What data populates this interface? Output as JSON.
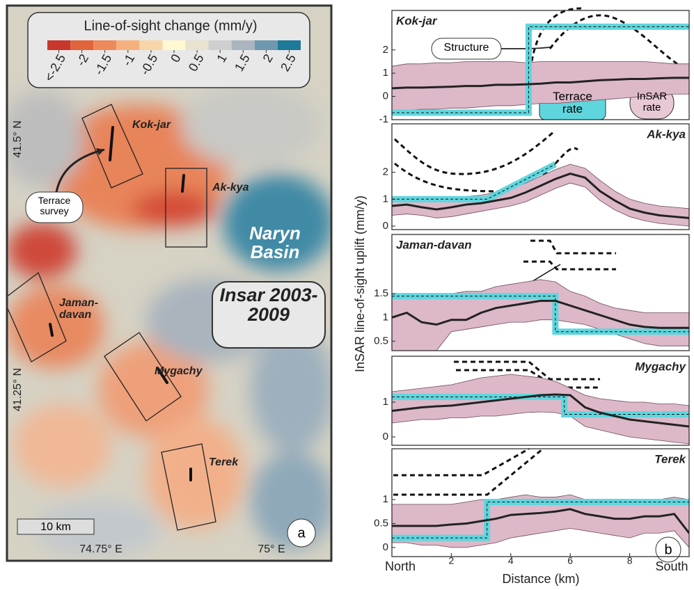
{
  "map": {
    "legend": {
      "title": "Line-of-sight change (mm/y)",
      "ticks": [
        {
          "value": -2.5,
          "label": "<-2.5"
        },
        -2,
        -1.5,
        -1,
        -0.5,
        0,
        0.5,
        1,
        1.5,
        2,
        2.5
      ],
      "colors": [
        "#c8372d",
        "#e0643c",
        "#ee8a5a",
        "#f6b07d",
        "#f8d5a8",
        "#fff8d0",
        "#e8e2cf",
        "#cfcfcf",
        "#aab5bf",
        "#6e98b0",
        "#1f7a99"
      ]
    },
    "sites": [
      "Kok-jar",
      "Ak-kya",
      "Jaman-davan",
      "Mygachy",
      "Terek"
    ],
    "basin": "Naryn Basin",
    "dataset": "Insar 2003-2009",
    "callout": "Terrace survey",
    "scale": "10 km",
    "longitudes": [
      "74.75° E",
      "75° E"
    ],
    "latitudes": [
      "41.5° N",
      "41.25° N"
    ],
    "panel_label": "a"
  },
  "profiles": {
    "xlabel": "Distance (km)",
    "ylabel": "InSAR line-of-sight uplift (mm/y)",
    "panel_label": "b"
  },
  "chart_data": [
    {
      "type": "line",
      "title": "Kok-jar",
      "xlim": [
        0,
        10
      ],
      "ylim": [
        -1,
        3.7
      ],
      "yticks": [
        -1,
        0,
        1,
        2
      ],
      "annotations": [
        "Structure",
        "Terrace rate",
        "InSAR rate"
      ],
      "x": [
        0,
        0.5,
        1,
        1.5,
        2,
        2.5,
        3,
        3.5,
        4,
        4.5,
        5,
        5.5,
        6,
        6.5,
        7,
        7.5,
        8,
        8.5,
        9,
        9.5,
        10
      ],
      "insar": {
        "color": "#222222",
        "band_color": "#dcb8c8",
        "values": [
          0.35,
          0.38,
          0.38,
          0.4,
          0.42,
          0.45,
          0.45,
          0.5,
          0.5,
          0.52,
          0.55,
          0.6,
          0.6,
          0.65,
          0.7,
          0.72,
          0.75,
          0.75,
          0.78,
          0.8,
          0.8
        ],
        "upper": [
          1.3,
          1.4,
          1.4,
          1.45,
          1.45,
          1.5,
          1.5,
          1.5,
          1.5,
          1.45,
          1.5,
          1.5,
          1.5,
          1.5,
          1.5,
          1.5,
          1.5,
          1.5,
          1.45,
          1.4,
          1.4
        ],
        "lower": [
          -0.6,
          -0.6,
          -0.55,
          -0.55,
          -0.5,
          -0.5,
          -0.45,
          -0.4,
          -0.4,
          -0.35,
          -0.3,
          -0.3,
          -0.25,
          -0.2,
          -0.15,
          -0.1,
          -0.05,
          0,
          0.05,
          0.1,
          0.1
        ]
      },
      "terrace": {
        "color": "#5fd6de",
        "x": [
          0,
          4.6,
          4.6,
          10
        ],
        "values": [
          -0.7,
          -0.7,
          3.0,
          3.0
        ]
      }
    },
    {
      "type": "line",
      "title": "Ak-kya",
      "xlim": [
        0,
        10
      ],
      "ylim": [
        -0.13,
        3.8
      ],
      "yticks": [
        0,
        1,
        2
      ],
      "x": [
        0,
        0.5,
        1,
        1.5,
        2,
        2.5,
        3,
        3.5,
        4,
        4.5,
        5,
        5.5,
        6,
        6.5,
        7,
        7.5,
        8,
        8.5,
        9,
        9.5,
        10
      ],
      "insar": {
        "color": "#222222",
        "band_color": "#dcb8c8",
        "values": [
          0.75,
          0.8,
          0.7,
          0.62,
          0.7,
          0.8,
          0.85,
          0.95,
          1.05,
          1.25,
          1.5,
          1.75,
          1.95,
          1.8,
          1.3,
          0.95,
          0.65,
          0.5,
          0.4,
          0.35,
          0.3
        ],
        "upper": [
          1.05,
          1.1,
          1.0,
          0.95,
          1.0,
          1.1,
          1.15,
          1.25,
          1.4,
          1.6,
          1.85,
          2.1,
          2.3,
          2.15,
          1.7,
          1.3,
          1.0,
          0.85,
          0.75,
          0.7,
          0.65
        ],
        "lower": [
          0.4,
          0.45,
          0.4,
          0.3,
          0.35,
          0.45,
          0.55,
          0.65,
          0.75,
          0.9,
          1.15,
          1.4,
          1.6,
          1.45,
          0.95,
          0.6,
          0.35,
          0.2,
          0.1,
          0.05,
          0.0
        ]
      },
      "terrace": {
        "color": "#5fd6de",
        "x": [
          0,
          3.2,
          5.5
        ],
        "values": [
          1.0,
          1.0,
          2.3
        ]
      }
    },
    {
      "type": "line",
      "title": "Jaman-davan",
      "xlim": [
        0,
        10
      ],
      "ylim": [
        0.3,
        2.75
      ],
      "yticks": [
        0.5,
        1,
        1.5
      ],
      "x": [
        0,
        0.5,
        1,
        1.5,
        2,
        2.5,
        3,
        3.5,
        4,
        4.5,
        5,
        5.5,
        6,
        6.5,
        7,
        7.5,
        8,
        8.5,
        9,
        9.5,
        10
      ],
      "insar": {
        "color": "#222222",
        "band_color": "#dcb8c8",
        "values": [
          1.0,
          1.1,
          0.9,
          0.85,
          0.95,
          0.95,
          1.1,
          1.2,
          1.25,
          1.3,
          1.35,
          1.35,
          1.25,
          1.15,
          1.05,
          0.95,
          0.85,
          0.8,
          0.78,
          0.78,
          0.78
        ],
        "upper": [
          1.45,
          1.45,
          1.45,
          1.45,
          1.5,
          1.55,
          1.55,
          1.65,
          1.7,
          1.75,
          1.8,
          1.75,
          1.55,
          1.45,
          1.3,
          1.2,
          1.15,
          1.1,
          1.1,
          1.1,
          1.1
        ],
        "lower": [
          0.3,
          0.3,
          0.3,
          0.3,
          0.7,
          0.75,
          0.8,
          0.85,
          0.9,
          0.9,
          0.95,
          0.95,
          0.9,
          0.85,
          0.75,
          0.65,
          0.55,
          0.45,
          0.4,
          0.4,
          0.4
        ]
      },
      "terrace": {
        "color": "#5fd6de",
        "x": [
          0,
          5.5,
          5.5,
          10
        ],
        "values": [
          1.45,
          1.45,
          0.7,
          0.7
        ]
      }
    },
    {
      "type": "line",
      "title": "Mygachy",
      "xlim": [
        0,
        10
      ],
      "ylim": [
        -0.24,
        2.32
      ],
      "yticks": [
        0,
        1
      ],
      "x": [
        0,
        0.5,
        1,
        1.5,
        2,
        2.5,
        3,
        3.5,
        4,
        4.5,
        5,
        5.5,
        6,
        6.5,
        7,
        7.5,
        8,
        8.5,
        9,
        9.5,
        10
      ],
      "insar": {
        "color": "#222222",
        "band_color": "#dcb8c8",
        "values": [
          0.75,
          0.8,
          0.85,
          0.88,
          0.9,
          0.95,
          1.0,
          1.05,
          1.1,
          1.15,
          1.2,
          1.22,
          1.2,
          0.85,
          0.7,
          0.6,
          0.5,
          0.45,
          0.4,
          0.35,
          0.3
        ],
        "upper": [
          1.3,
          1.35,
          1.4,
          1.45,
          1.5,
          1.6,
          1.7,
          1.75,
          1.8,
          1.75,
          1.7,
          1.6,
          1.4,
          1.2,
          1.1,
          1.05,
          1.0,
          1.0,
          0.95,
          0.95,
          0.9
        ],
        "lower": [
          0.4,
          0.45,
          0.5,
          0.5,
          0.55,
          0.55,
          0.6,
          0.6,
          0.65,
          0.7,
          0.72,
          0.7,
          0.6,
          0.3,
          0.2,
          0.1,
          0.0,
          -0.05,
          -0.1,
          -0.15,
          -0.2
        ]
      },
      "terrace": {
        "color": "#5fd6de",
        "x": [
          0,
          5.8,
          5.8,
          10
        ],
        "values": [
          1.15,
          1.15,
          0.65,
          0.65
        ]
      }
    },
    {
      "type": "line",
      "title": "Terek",
      "xlim": [
        0,
        10
      ],
      "ylim": [
        -0.19,
        2.06
      ],
      "yticks": [
        0,
        0.5,
        1
      ],
      "xticks": [
        {
          "value": 0,
          "label": "North"
        },
        2,
        4,
        6,
        8,
        {
          "value": 10,
          "label": "South"
        }
      ],
      "x": [
        0,
        0.5,
        1,
        1.5,
        2,
        2.5,
        3,
        3.5,
        4,
        4.5,
        5,
        5.5,
        6,
        6.5,
        7,
        7.5,
        8,
        8.5,
        9,
        9.5,
        10
      ],
      "insar": {
        "color": "#222222",
        "band_color": "#dcb8c8",
        "values": [
          0.45,
          0.45,
          0.45,
          0.45,
          0.48,
          0.5,
          0.55,
          0.6,
          0.68,
          0.7,
          0.72,
          0.75,
          0.8,
          0.7,
          0.65,
          0.6,
          0.6,
          0.65,
          0.65,
          0.7,
          0.3
        ],
        "upper": [
          0.9,
          0.9,
          0.9,
          0.9,
          0.9,
          0.95,
          1.0,
          1.0,
          1.05,
          1.1,
          1.05,
          1.05,
          1.1,
          1.0,
          0.95,
          0.95,
          0.95,
          1.0,
          1.0,
          1.05,
          1.0
        ],
        "lower": [
          0.1,
          0.1,
          0.05,
          0.05,
          0.0,
          0.0,
          0.05,
          0.1,
          0.2,
          0.25,
          0.3,
          0.35,
          0.4,
          0.35,
          0.3,
          0.25,
          0.2,
          0.3,
          0.3,
          0.35,
          0.0
        ]
      },
      "terrace": {
        "color": "#5fd6de",
        "x": [
          0,
          3.2,
          3.2,
          10
        ],
        "values": [
          0.2,
          0.2,
          0.95,
          0.95
        ]
      }
    }
  ]
}
